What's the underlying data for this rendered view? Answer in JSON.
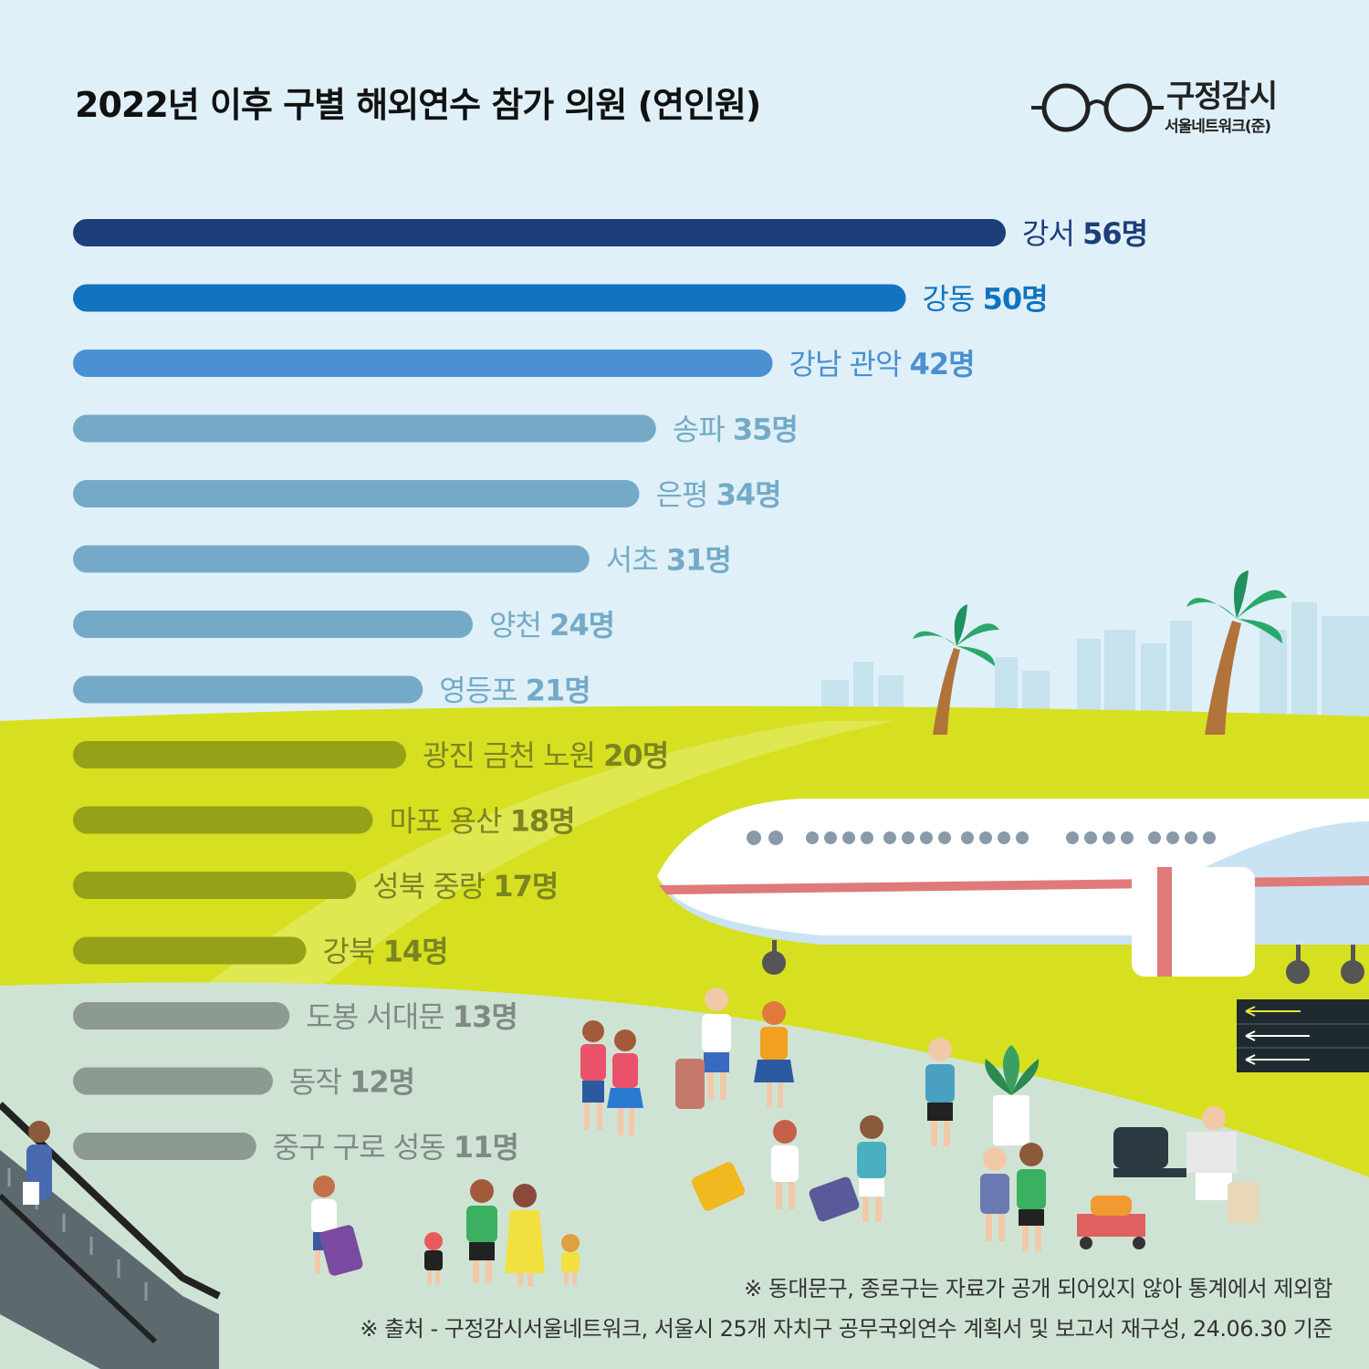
{
  "header": {
    "title": "2022년 이후 구별 해외연수 참가 의원 (연인원)"
  },
  "logo": {
    "main": "구정감시",
    "sub": "서울네트워크(준)"
  },
  "chart_data": {
    "type": "bar",
    "orientation": "horizontal",
    "title": "2022년 이후 구별 해외연수 참가 의원 (연인원)",
    "categories": [
      "강서",
      "강동",
      "강남 관악",
      "송파",
      "은평",
      "서초",
      "양천",
      "영등포",
      "광진 금천 노원",
      "마포 용산",
      "성북 중랑",
      "강북",
      "도봉 서대문",
      "동작",
      "중구 구로 성동"
    ],
    "values": [
      56,
      50,
      42,
      35,
      34,
      31,
      24,
      21,
      20,
      18,
      17,
      14,
      13,
      12,
      11
    ],
    "value_labels": [
      "56명",
      "50명",
      "42명",
      "35명",
      "34명",
      "31명",
      "24명",
      "21명",
      "20명",
      "18명",
      "17명",
      "14명",
      "13명",
      "12명",
      "11명"
    ],
    "colors": [
      "#1c3f7a",
      "#1273c0",
      "#4b90d0",
      "#74aac8",
      "#74aac8",
      "#74aac8",
      "#74aac8",
      "#74aac8",
      "#96a11a",
      "#96a11a",
      "#96a11a",
      "#96a11a",
      "#8c9a92",
      "#8c9a92",
      "#8c9a92"
    ],
    "label_colors": [
      "#1c3f7a",
      "#1273c0",
      "#4b90d0",
      "#74aac8",
      "#74aac8",
      "#74aac8",
      "#74aac8",
      "#74aac8",
      "#7c8420",
      "#7c8420",
      "#7c8420",
      "#7c8420",
      "#7f8a84",
      "#7f8a84",
      "#7f8a84"
    ],
    "xlim": [
      0,
      56
    ],
    "grid": false,
    "legend": "none"
  },
  "notes": {
    "note1": "※ 동대문구, 종로구는 자료가 공개 되어있지 않아 통계에서 제외함",
    "note2": "※ 출처 - 구정감시서울네트워크, 서울시 25개 자치구 공무국외연수 계획서 및 보고서 재구성, 24.06.30 기준"
  },
  "colors": {
    "sky": "#dff0f8",
    "grass": "#d6e020",
    "ground": "#cfe3d5",
    "plane": "#ffffff",
    "plane_stripe": "#e07a78"
  }
}
